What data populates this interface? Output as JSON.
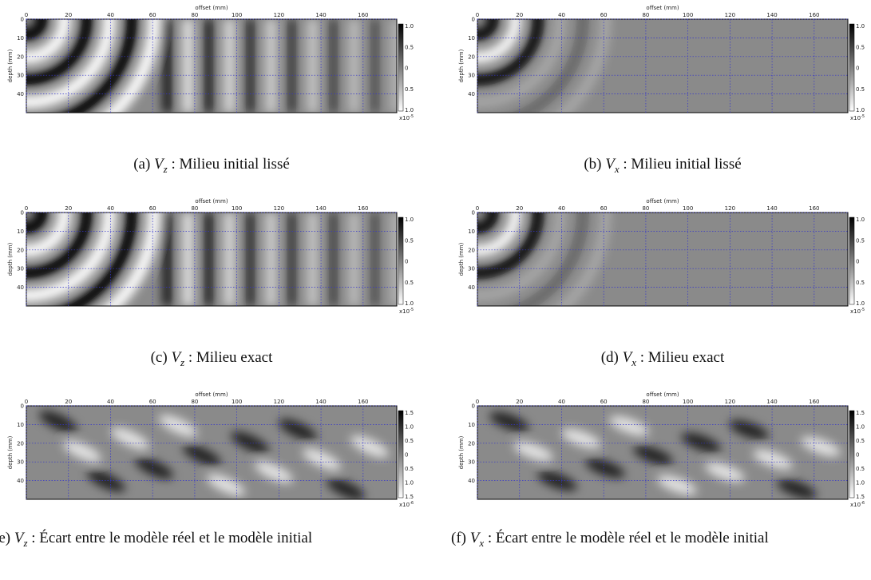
{
  "panels": [
    {
      "label": "(a)",
      "var": "V",
      "sub": "z",
      "caption": " : Milieu initial lissé",
      "x_axis_label": "offset (mm)",
      "y_axis_label": "depth (mm)",
      "xlim": [
        0,
        176
      ],
      "ylim": [
        0,
        50
      ],
      "xticks": [
        0,
        20,
        40,
        60,
        80,
        100,
        120,
        140,
        160
      ],
      "yticks": [
        0,
        10,
        20,
        30,
        40
      ],
      "colorbar_ticks": [
        "1.0",
        "0.5",
        "0",
        "0.5",
        "1.0"
      ],
      "colorbar_exponent": "x10",
      "colorbar_power": "-5"
    },
    {
      "label": "(b)",
      "var": "V",
      "sub": "x",
      "caption": " : Milieu initial lissé",
      "x_axis_label": "offset (mm)",
      "y_axis_label": "depth (mm)",
      "xlim": [
        0,
        176
      ],
      "ylim": [
        0,
        50
      ],
      "xticks": [
        0,
        20,
        40,
        60,
        80,
        100,
        120,
        140,
        160
      ],
      "yticks": [
        0,
        10,
        20,
        30,
        40
      ],
      "colorbar_ticks": [
        "1.0",
        "0.5",
        "0",
        "0.5",
        "1.0"
      ],
      "colorbar_exponent": "x10",
      "colorbar_power": "-5"
    },
    {
      "label": "(c)",
      "var": "V",
      "sub": "z",
      "caption": " : Milieu exact",
      "x_axis_label": "offset (mm)",
      "y_axis_label": "depth (mm)",
      "xlim": [
        0,
        176
      ],
      "ylim": [
        0,
        50
      ],
      "xticks": [
        0,
        20,
        40,
        60,
        80,
        100,
        120,
        140,
        160
      ],
      "yticks": [
        0,
        10,
        20,
        30,
        40
      ],
      "colorbar_ticks": [
        "1.0",
        "0.5",
        "0",
        "0.5",
        "1.0"
      ],
      "colorbar_exponent": "x10",
      "colorbar_power": "-5"
    },
    {
      "label": "(d)",
      "var": "V",
      "sub": "x",
      "caption": " : Milieu exact",
      "x_axis_label": "offset (mm)",
      "y_axis_label": "depth (mm)",
      "xlim": [
        0,
        176
      ],
      "ylim": [
        0,
        50
      ],
      "xticks": [
        0,
        20,
        40,
        60,
        80,
        100,
        120,
        140,
        160
      ],
      "yticks": [
        0,
        10,
        20,
        30,
        40
      ],
      "colorbar_ticks": [
        "1.0",
        "0.5",
        "0",
        "0.5",
        "1.0"
      ],
      "colorbar_exponent": "x10",
      "colorbar_power": "-5"
    },
    {
      "label": "(e)",
      "var": "V",
      "sub": "z",
      "caption": " : Écart entre le modèle réel et le modèle initial",
      "x_axis_label": "offset (mm)",
      "y_axis_label": "depth (mm)",
      "xlim": [
        0,
        176
      ],
      "ylim": [
        0,
        50
      ],
      "xticks": [
        0,
        20,
        40,
        60,
        80,
        100,
        120,
        140,
        160
      ],
      "yticks": [
        0,
        10,
        20,
        30,
        40
      ],
      "colorbar_ticks": [
        "1.5",
        "1.0",
        "0.5",
        "0",
        "0.5",
        "1.0",
        "1.5"
      ],
      "colorbar_exponent": "x10",
      "colorbar_power": "-6"
    },
    {
      "label": "(f)",
      "var": "V",
      "sub": "x",
      "caption": " : Écart entre le modèle réel et le modèle initial",
      "x_axis_label": "offset (mm)",
      "y_axis_label": "depth (mm)",
      "xlim": [
        0,
        176
      ],
      "ylim": [
        0,
        50
      ],
      "xticks": [
        0,
        20,
        40,
        60,
        80,
        100,
        120,
        140,
        160
      ],
      "yticks": [
        0,
        10,
        20,
        30,
        40
      ],
      "colorbar_ticks": [
        "1.5",
        "1.0",
        "0.5",
        "0",
        "0.5",
        "1.0",
        "1.5"
      ],
      "colorbar_exponent": "x10",
      "colorbar_power": "-6"
    }
  ]
}
